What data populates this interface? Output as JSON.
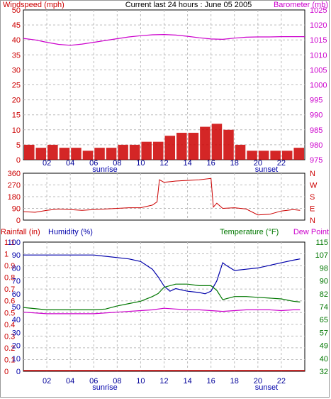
{
  "title": "Current last 24 hours : June 05 2005",
  "colors": {
    "wind": "#cc0000",
    "gust": "#ff0000",
    "baro": "#cc00cc",
    "dir": "#cc0000",
    "rain": "#cc0000",
    "humidity": "#0000aa",
    "temp": "#007700",
    "dew": "#cc00cc",
    "grid": "#bbbbbb",
    "wind_blue": "#0000dd",
    "wind_green": "#009900"
  },
  "x_ticks": [
    "02",
    "04",
    "06",
    "08",
    "10",
    "12",
    "14",
    "16",
    "18",
    "20",
    "22"
  ],
  "sunrise_label": "sunrise",
  "sunset_label": "sunset",
  "chart_data": [
    {
      "type": "bar",
      "title": "Current last 24 hours : June 05 2005",
      "left_label": "Windspeed (mph)",
      "right_label": "Barometer (mb)",
      "left_ticks": [
        "0",
        "5",
        "10",
        "15",
        "20",
        "25",
        "30",
        "35",
        "40",
        "45",
        "50"
      ],
      "right_ticks": [
        "975",
        "980",
        "985",
        "990",
        "995",
        "1000",
        "1005",
        "1010",
        "1015",
        "1020",
        "1025"
      ],
      "ylim_left": [
        0,
        50
      ],
      "ylim_right": [
        975,
        1025
      ],
      "x_range_hours": [
        0,
        24
      ],
      "series": [
        {
          "name": "Windspeed (mph)",
          "type": "bar",
          "x": [
            0,
            1,
            2,
            3,
            4,
            5,
            6,
            7,
            8,
            9,
            10,
            11,
            12,
            13,
            14,
            15,
            16,
            17,
            18,
            19,
            20,
            21,
            22,
            23
          ],
          "values": [
            5,
            4,
            5,
            4,
            4,
            3,
            4,
            4,
            5,
            5,
            6,
            6,
            8,
            9,
            9,
            11,
            12,
            10,
            5,
            3,
            3,
            3,
            3,
            4
          ]
        },
        {
          "name": "Barometer (mb)",
          "type": "line",
          "x": [
            0,
            1,
            2,
            3,
            4,
            5,
            6,
            7,
            8,
            9,
            10,
            11,
            12,
            13,
            14,
            15,
            16,
            17,
            18,
            19,
            20,
            21,
            22,
            23,
            24
          ],
          "values": [
            1015.5,
            1015.0,
            1014.2,
            1013.5,
            1013.2,
            1013.6,
            1014.2,
            1014.8,
            1015.4,
            1016.0,
            1016.4,
            1016.7,
            1016.8,
            1016.6,
            1016.2,
            1015.7,
            1015.3,
            1015.2,
            1015.6,
            1015.9,
            1016.0,
            1016.0,
            1016.1,
            1016.1,
            1016.1
          ]
        }
      ]
    },
    {
      "type": "line",
      "left_ticks": [
        "360",
        "270",
        "180",
        "90",
        "0"
      ],
      "right_ticks": [
        "N",
        "W",
        "S",
        "E",
        "N"
      ],
      "ylim_left": [
        0,
        360
      ],
      "x_range_hours": [
        0,
        24
      ],
      "series": [
        {
          "name": "Wind Direction",
          "x": [
            0,
            1,
            2,
            3,
            4,
            5,
            6,
            7,
            8,
            9,
            10,
            11,
            11.4,
            11.6,
            12,
            13,
            14,
            15,
            16,
            16.2,
            16.5,
            17,
            18,
            19,
            20,
            21,
            22,
            23,
            23.6
          ],
          "values": [
            65,
            60,
            75,
            85,
            80,
            75,
            80,
            85,
            90,
            95,
            95,
            115,
            140,
            310,
            290,
            300,
            305,
            310,
            320,
            100,
            130,
            90,
            95,
            85,
            40,
            45,
            70,
            80,
            75
          ]
        }
      ]
    },
    {
      "type": "line",
      "rainfall_label": "Rainfall (in)",
      "humidity_label": "Humidity (%)",
      "temperature_label": "Temperature (°F)",
      "dewpoint_label": "Dew Point",
      "rain_ticks": [
        "0",
        "0.1",
        "0.2",
        "0.3",
        "0.4",
        "0.5",
        "0.6",
        "0.7",
        "0.8",
        "0.9",
        "1",
        "1.1"
      ],
      "humidity_ticks": [
        "0",
        "10",
        "20",
        "30",
        "40",
        "50",
        "60",
        "70",
        "80",
        "90",
        "100"
      ],
      "temp_ticks": [
        "32",
        "40",
        "49",
        "57",
        "65",
        "74",
        "82",
        "90",
        "98",
        "107",
        "115"
      ],
      "ylim_humidity": [
        0,
        100
      ],
      "ylim_temp": [
        32,
        115
      ],
      "ylim_rain": [
        0,
        1.1
      ],
      "x_range_hours": [
        0,
        24
      ],
      "series": [
        {
          "name": "Humidity (%)",
          "axis": "humidity",
          "x": [
            0,
            2,
            4,
            6,
            7,
            8,
            9,
            10,
            11,
            11.5,
            12,
            12.5,
            13,
            14,
            15,
            15.5,
            16,
            16.5,
            17,
            17.3,
            18,
            19,
            20,
            21,
            22,
            23,
            23.6
          ],
          "values": [
            90,
            90,
            90,
            90,
            89,
            88,
            87,
            85,
            79,
            73,
            66,
            62,
            64,
            62,
            61,
            60,
            62,
            70,
            84,
            82,
            78,
            79,
            80,
            82,
            84,
            86,
            87
          ]
        },
        {
          "name": "Temperature (°F)",
          "axis": "temp",
          "x": [
            0,
            2,
            4,
            6,
            7,
            8,
            9,
            10,
            11,
            11.5,
            12,
            13,
            14,
            15,
            16,
            16.5,
            17,
            18,
            19,
            20,
            21,
            22,
            23,
            23.6
          ],
          "values": [
            73,
            71.5,
            71.5,
            71.5,
            72,
            74,
            75.5,
            77,
            80,
            82,
            86,
            88,
            88,
            87,
            87,
            84,
            78,
            80,
            80,
            79.5,
            79,
            78.5,
            77,
            76.5
          ]
        },
        {
          "name": "Dew Point",
          "axis": "temp",
          "x": [
            0,
            2,
            4,
            6,
            8,
            10,
            11,
            12,
            13,
            14,
            15,
            16,
            17,
            18,
            19,
            20,
            21,
            22,
            23,
            23.6
          ],
          "values": [
            70,
            69,
            69,
            69,
            70,
            71,
            71.5,
            72.5,
            72,
            71.5,
            71.5,
            71,
            70.5,
            71,
            71.5,
            71.5,
            71.5,
            71,
            71.5,
            71.5
          ]
        },
        {
          "name": "Rainfall (in)",
          "axis": "rain",
          "x": [
            0,
            24
          ],
          "values": [
            0,
            0
          ]
        }
      ]
    }
  ]
}
